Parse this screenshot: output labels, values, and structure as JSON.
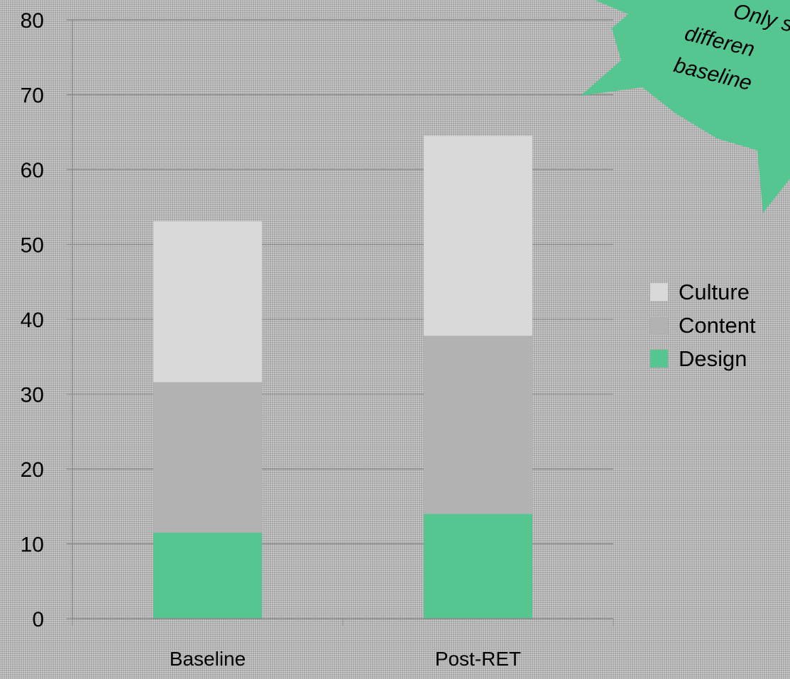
{
  "chart_data": {
    "type": "bar",
    "stacked": true,
    "categories": [
      "Baseline",
      "Post-RET"
    ],
    "series": [
      {
        "name": "Design",
        "color": "#56c691",
        "values": [
          11.5,
          14
        ]
      },
      {
        "name": "Content",
        "color": "#b2b2b2",
        "values": [
          20.1,
          23.8
        ]
      },
      {
        "name": "Culture",
        "color": "#d9d9d9",
        "values": [
          21.5,
          26.7
        ]
      }
    ],
    "ylim": [
      0,
      80
    ],
    "yticks": [
      "0",
      "10",
      "20",
      "30",
      "40",
      "50",
      "60",
      "70",
      "80"
    ],
    "grid": true,
    "legend_position": "right",
    "title": "",
    "xlabel": "",
    "ylabel": ""
  },
  "callout": {
    "lines": [
      "Only s",
      "differen",
      "baseline"
    ],
    "color": "#56c691"
  }
}
